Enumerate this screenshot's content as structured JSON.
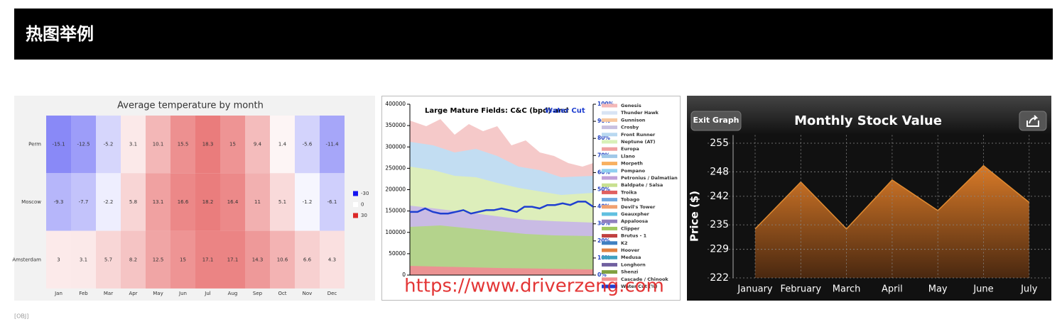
{
  "header": {
    "title": "热图举例"
  },
  "chart_data": [
    {
      "type": "heatmap",
      "title": "Average temperature by month",
      "categories": [
        "Jan",
        "Feb",
        "Mar",
        "Apr",
        "May",
        "Jun",
        "Jul",
        "Aug",
        "Sep",
        "Oct",
        "Nov",
        "Dec"
      ],
      "rows": [
        "Perm",
        "Moscow",
        "Amsterdam"
      ],
      "values": [
        [
          -15.1,
          -12.5,
          -5.2,
          3.1,
          10.1,
          15.5,
          18.3,
          15,
          9.4,
          1.4,
          -5.6,
          -11.4
        ],
        [
          -9.3,
          -7.7,
          -2.2,
          5.8,
          13.1,
          16.6,
          18.2,
          16.4,
          11,
          5.1,
          -1.2,
          -6.1
        ],
        [
          3,
          3.1,
          5.7,
          8.2,
          12.5,
          15,
          17.1,
          17.1,
          14.3,
          10.6,
          6.6,
          4.3
        ]
      ],
      "scale": [
        -30,
        0,
        30
      ],
      "scale_colors": [
        "#1414f0",
        "#ffffff",
        "#dc2828"
      ]
    },
    {
      "type": "area",
      "title": "Large Mature Fields: C&C (bpd) and",
      "title_highlight": "Water Cut",
      "ylim": [
        0,
        400000
      ],
      "yticks": [
        0,
        50000,
        100000,
        150000,
        200000,
        250000,
        300000,
        350000,
        400000
      ],
      "y2lim": [
        0,
        100
      ],
      "y2ticks": [
        {
          "value": 0,
          "label": "0%"
        },
        {
          "value": 10,
          "label": "10%"
        },
        {
          "value": 20,
          "label": "20%"
        },
        {
          "value": 30,
          "label": "30%"
        },
        {
          "value": 40,
          "label": "40%"
        },
        {
          "value": 50,
          "label": "50%"
        },
        {
          "value": 60,
          "label": "60%"
        },
        {
          "value": 70,
          "label": "70%"
        },
        {
          "value": 80,
          "label": "80%"
        },
        {
          "value": 90,
          "label": "90%"
        },
        {
          "value": 100,
          "label": "100%"
        }
      ],
      "legend": [
        {
          "name": "Genesis",
          "color": "#f4b8b8"
        },
        {
          "name": "Thunder Hawk",
          "color": "#d8e4f4"
        },
        {
          "name": "Gunnison",
          "color": "#f8c8a0"
        },
        {
          "name": "Crosby",
          "color": "#c8c0e0"
        },
        {
          "name": "Front Runner",
          "color": "#b8d8f0"
        },
        {
          "name": "Neptune (AT)",
          "color": "#d8f0b8"
        },
        {
          "name": "Europa",
          "color": "#f0a0a0"
        },
        {
          "name": "Llano",
          "color": "#a0c8e8"
        },
        {
          "name": "Morpeth",
          "color": "#f8b060"
        },
        {
          "name": "Pompano",
          "color": "#90d0f0"
        },
        {
          "name": "Petronius / Dalmatian",
          "color": "#c0a0d8"
        },
        {
          "name": "Baldpate / Salsa",
          "color": "#c8e090"
        },
        {
          "name": "Troika",
          "color": "#e06060"
        },
        {
          "name": "Tobago",
          "color": "#70a8e0"
        },
        {
          "name": "Devil's Tower",
          "color": "#f0a070"
        },
        {
          "name": "Geauxpher",
          "color": "#60c0e0"
        },
        {
          "name": "Appaloosa",
          "color": "#9080c0"
        },
        {
          "name": "Clipper",
          "color": "#a0c860"
        },
        {
          "name": "Brutus - 1",
          "color": "#c04040"
        },
        {
          "name": "K2",
          "color": "#4080c0"
        },
        {
          "name": "Hoover",
          "color": "#e08040"
        },
        {
          "name": "Medusa",
          "color": "#40a0c0"
        },
        {
          "name": "Longhorn",
          "color": "#7060a0"
        },
        {
          "name": "Shenzi",
          "color": "#80a040"
        },
        {
          "name": "Cascade / Chinook",
          "color": "#f09090"
        }
      ],
      "series": [
        {
          "name": "Water Cut (%)",
          "color": "#1f3fd0",
          "axis": "y2",
          "values": [
            37,
            37,
            39,
            37,
            36,
            36,
            37,
            38,
            36,
            37,
            38,
            38,
            39,
            38,
            37,
            40,
            40,
            39,
            41,
            41,
            42,
            41,
            43,
            43,
            40
          ]
        }
      ]
    },
    {
      "type": "area",
      "title": "Monthly Stock Value",
      "button": "Exit Graph",
      "ylabel": "Price ($)",
      "categories": [
        "January",
        "February",
        "March",
        "April",
        "May",
        "June",
        "July"
      ],
      "values": [
        234,
        245.5,
        234,
        246,
        238.5,
        249.5,
        240.5
      ],
      "color": "#d07020",
      "ylim": [
        222,
        257
      ],
      "yticks": [
        222,
        229,
        235,
        242,
        248,
        255
      ],
      "grid": true
    }
  ],
  "watermark": "https://www.driverzeng.com",
  "footer": "[OBJ]"
}
